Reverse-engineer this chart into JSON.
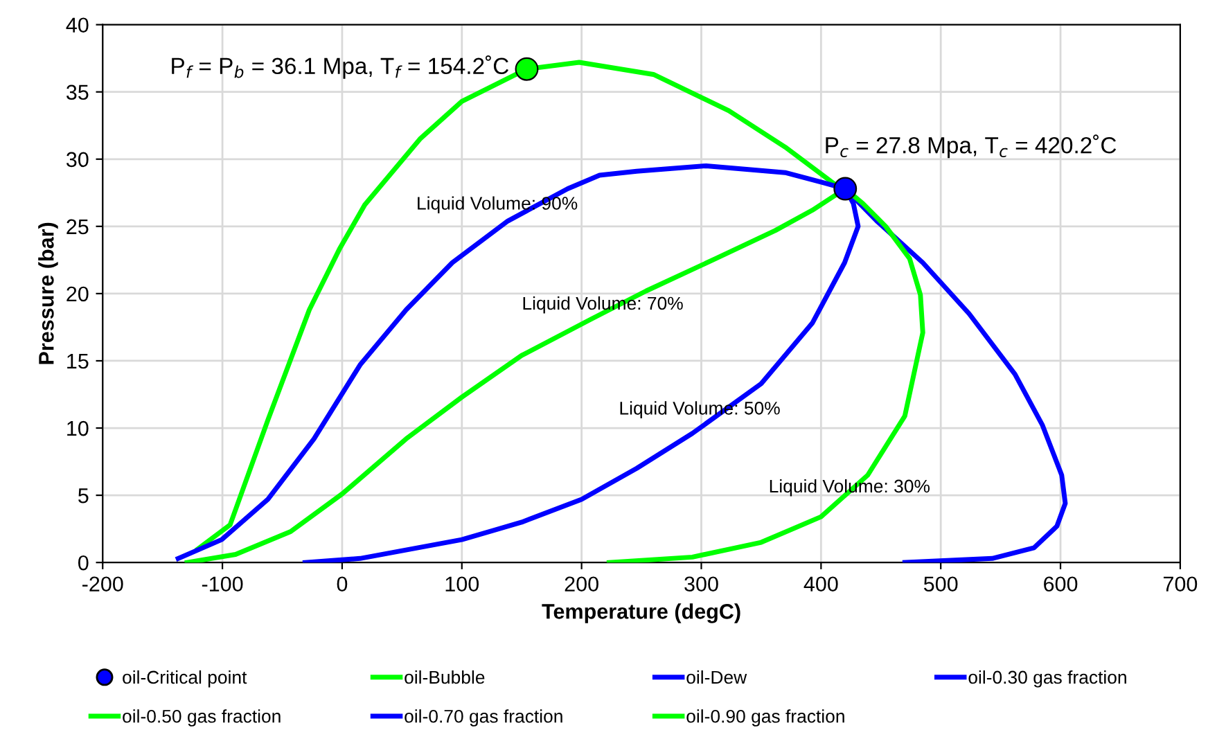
{
  "chart_data": {
    "type": "line",
    "xlabel": "Temperature (degC)",
    "ylabel": "Pressure (bar)",
    "xlim": [
      -200,
      700
    ],
    "xticks": [
      -200,
      -100,
      0,
      100,
      200,
      300,
      400,
      500,
      600,
      700
    ],
    "ylim": [
      0,
      40
    ],
    "yticks": [
      0,
      5,
      10,
      15,
      20,
      25,
      30,
      35,
      40
    ],
    "grid": true,
    "legend": "bottom",
    "marker": "none",
    "line_style": "solid",
    "series": [
      {
        "name": "oil-Critical point",
        "type": "scatter",
        "marker": "circle",
        "color": "#0000ff",
        "x": [
          420.2
        ],
        "values": [
          27.8
        ]
      },
      {
        "name": "oil-Bubble",
        "color": "#00ff00",
        "x": [
          -120.6,
          -93.6,
          -62,
          -27.4,
          -2.3,
          18.9,
          65,
          100,
          154.2,
          198,
          260,
          323,
          370,
          412,
          420.2
        ],
        "values": [
          1,
          2.8,
          10.6,
          18.8,
          23.3,
          26.6,
          31.5,
          34.3,
          36.7,
          37.2,
          36.3,
          33.6,
          30.9,
          28.1,
          27.8
        ]
      },
      {
        "name": "oil-Dew",
        "color": "#0000ff",
        "x": [
          420.2,
          446.6,
          485,
          523.7,
          562,
          585,
          601,
          604,
          597,
          578,
          543,
          470
        ],
        "values": [
          27.8,
          25.4,
          22.3,
          18.5,
          14,
          10.2,
          6.5,
          4.4,
          2.7,
          1.1,
          0.3,
          0
        ]
      },
      {
        "name": "oil-0.30 gas fraction",
        "color": "#0000ff",
        "x": [
          -137,
          -100.6,
          -62,
          -23.5,
          15,
          53.5,
          92,
          138.4,
          188.4,
          215,
          246,
          304,
          370,
          400,
          420.2
        ],
        "values": [
          0.3,
          1.7,
          4.7,
          9.2,
          14.7,
          18.8,
          22.3,
          25.4,
          27.8,
          28.8,
          29.1,
          29.5,
          29,
          28.3,
          27.8
        ]
      },
      {
        "name": "oil-0.50 gas fraction",
        "color": "#00ff00",
        "x": [
          -129.5,
          -89,
          -43,
          0,
          53.5,
          100,
          150,
          208,
          254,
          312,
          362,
          392.7,
          420.2
        ],
        "values": [
          0,
          0.6,
          2.3,
          5.1,
          9.2,
          12.3,
          15.4,
          18.1,
          20.2,
          22.6,
          24.7,
          26.2,
          27.8
        ]
      },
      {
        "name": "oil-0.70 gas fraction",
        "color": "#0000ff",
        "x": [
          -31,
          15,
          100,
          150,
          200,
          246,
          292.5,
          350,
          392.7,
          419.7,
          431,
          427,
          420.2
        ],
        "values": [
          0,
          0.3,
          1.7,
          3,
          4.7,
          7,
          9.6,
          13.3,
          17.8,
          22.3,
          25,
          26.7,
          27.8
        ]
      },
      {
        "name": "oil-0.90 gas fraction",
        "color": "#00ff00",
        "x": [
          223,
          292.5,
          350,
          400,
          439,
          470,
          485,
          483,
          474,
          454,
          435,
          420.2
        ],
        "values": [
          0,
          0.4,
          1.5,
          3.4,
          6.5,
          10.9,
          17.1,
          19.9,
          22.6,
          25,
          26.7,
          27.8
        ]
      },
      {
        "type": "scatter",
        "marker": "circle",
        "color": "#00ff00",
        "x": [
          154.2
        ],
        "values": [
          36.7
        ]
      }
    ],
    "annotations": [
      {
        "text": "P$_{f}$ = P$_{b}$ = 36.1 Mpa, T$_{f}$ = 154.2˚C",
        "x": 154.2,
        "y": 36.7
      },
      {
        "text": "P$_{c}$ = 27.8 Mpa, T$_{c}$ = 420.2˚C",
        "x": 420.2,
        "y": 27.8
      },
      "Liquid Volume: 90%",
      "Liquid Volume: 70%",
      "Liquid Volume: 50%",
      "Liquid Volume: 30%"
    ]
  }
}
